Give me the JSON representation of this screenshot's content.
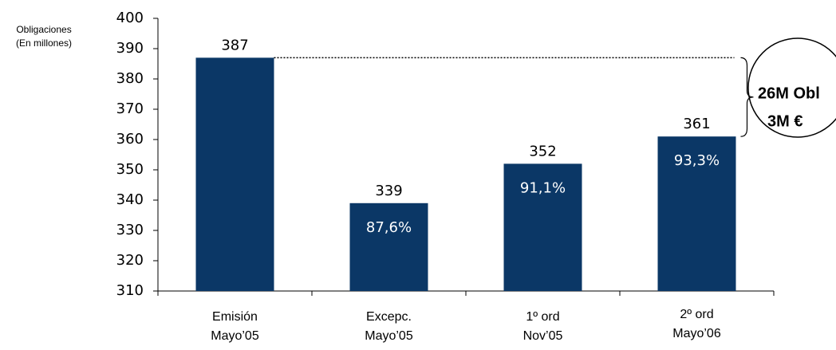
{
  "chart_data": {
    "type": "bar",
    "y_label": [
      "Obligaciones",
      "(En millones)"
    ],
    "categories": [
      [
        "Emisión",
        "Mayo’05"
      ],
      [
        "Excepc.",
        "Mayo’05"
      ],
      [
        "1º ord",
        "Nov’05"
      ],
      [
        "2º ord",
        "Mayo’06"
      ]
    ],
    "values": [
      387,
      339,
      352,
      361
    ],
    "percent_labels": [
      null,
      "87,6%",
      "91,1%",
      "93,3%"
    ],
    "color": "#0b3766",
    "ylim": [
      310,
      400
    ],
    "yticks": [
      310,
      320,
      330,
      340,
      350,
      360,
      370,
      380,
      390,
      400
    ],
    "annotation": [
      "26M Obl",
      "3M €"
    ]
  }
}
